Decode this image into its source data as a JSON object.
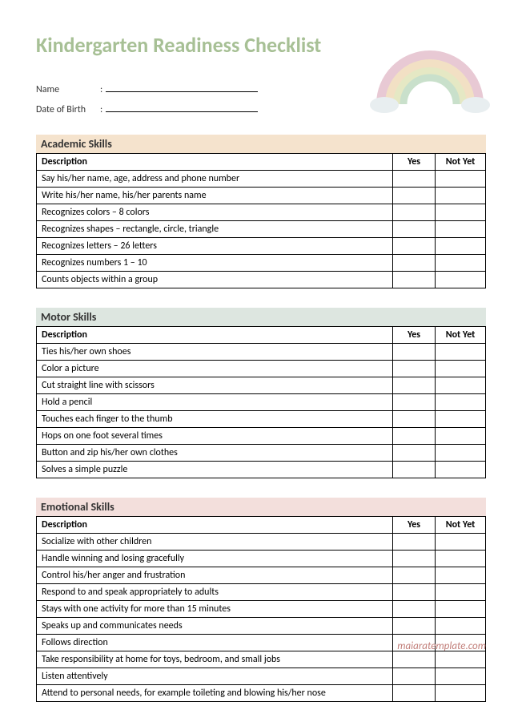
{
  "title": "Kindergarten Readiness Checklist",
  "title_color": "#a7c095",
  "info_fields": [
    {
      "label": "Name"
    },
    {
      "label": "Date of Birth"
    }
  ],
  "columns": {
    "desc": "Description",
    "yes": "Yes",
    "no": "Not Yet"
  },
  "sections": [
    {
      "name": "Academic Skills",
      "bg_class": "bg-academic",
      "bg_color": "#f5e3cd",
      "items": [
        "Say his/her name, age, address and phone number",
        "Write his/her name, his/her parents name",
        "Recognizes colors – 8 colors",
        "Recognizes shapes – rectangle, circle, triangle",
        "Recognizes letters – 26 letters",
        "Recognizes numbers 1 – 10",
        "Counts objects within a group"
      ]
    },
    {
      "name": "Motor Skills",
      "bg_class": "bg-motor",
      "bg_color": "#dde6e0",
      "items": [
        "Ties his/her own shoes",
        "Color a picture",
        "Cut straight line with scissors",
        "Hold a pencil",
        "Touches each finger to the thumb",
        "Hops on one foot several times",
        "Button and zip his/her own clothes",
        "Solves a simple puzzle"
      ]
    },
    {
      "name": "Emotional Skills",
      "bg_class": "bg-emotional",
      "bg_color": "#f3dfdc",
      "items": [
        "Socialize with other children",
        "Handle winning and losing gracefully",
        "Control his/her anger and frustration",
        "Respond to and speak appropriately to adults",
        "Stays with one activity for more than 15 minutes",
        "Speaks up and communicates needs",
        "Follows direction",
        "Take responsibility at home for toys, bedroom, and small jobs",
        "Listen attentively",
        "Attend to personal needs, for example toileting and blowing his/her nose"
      ]
    }
  ],
  "footer": "maiaratemplate.com",
  "footer_color": "#c27f7a",
  "rainbow_colors": {
    "outer": "#e8c9d4",
    "mid1": "#f2e0c4",
    "mid2": "#e5e8c4",
    "inner": "#c9e0cb",
    "cloud": "#e8eef0"
  }
}
